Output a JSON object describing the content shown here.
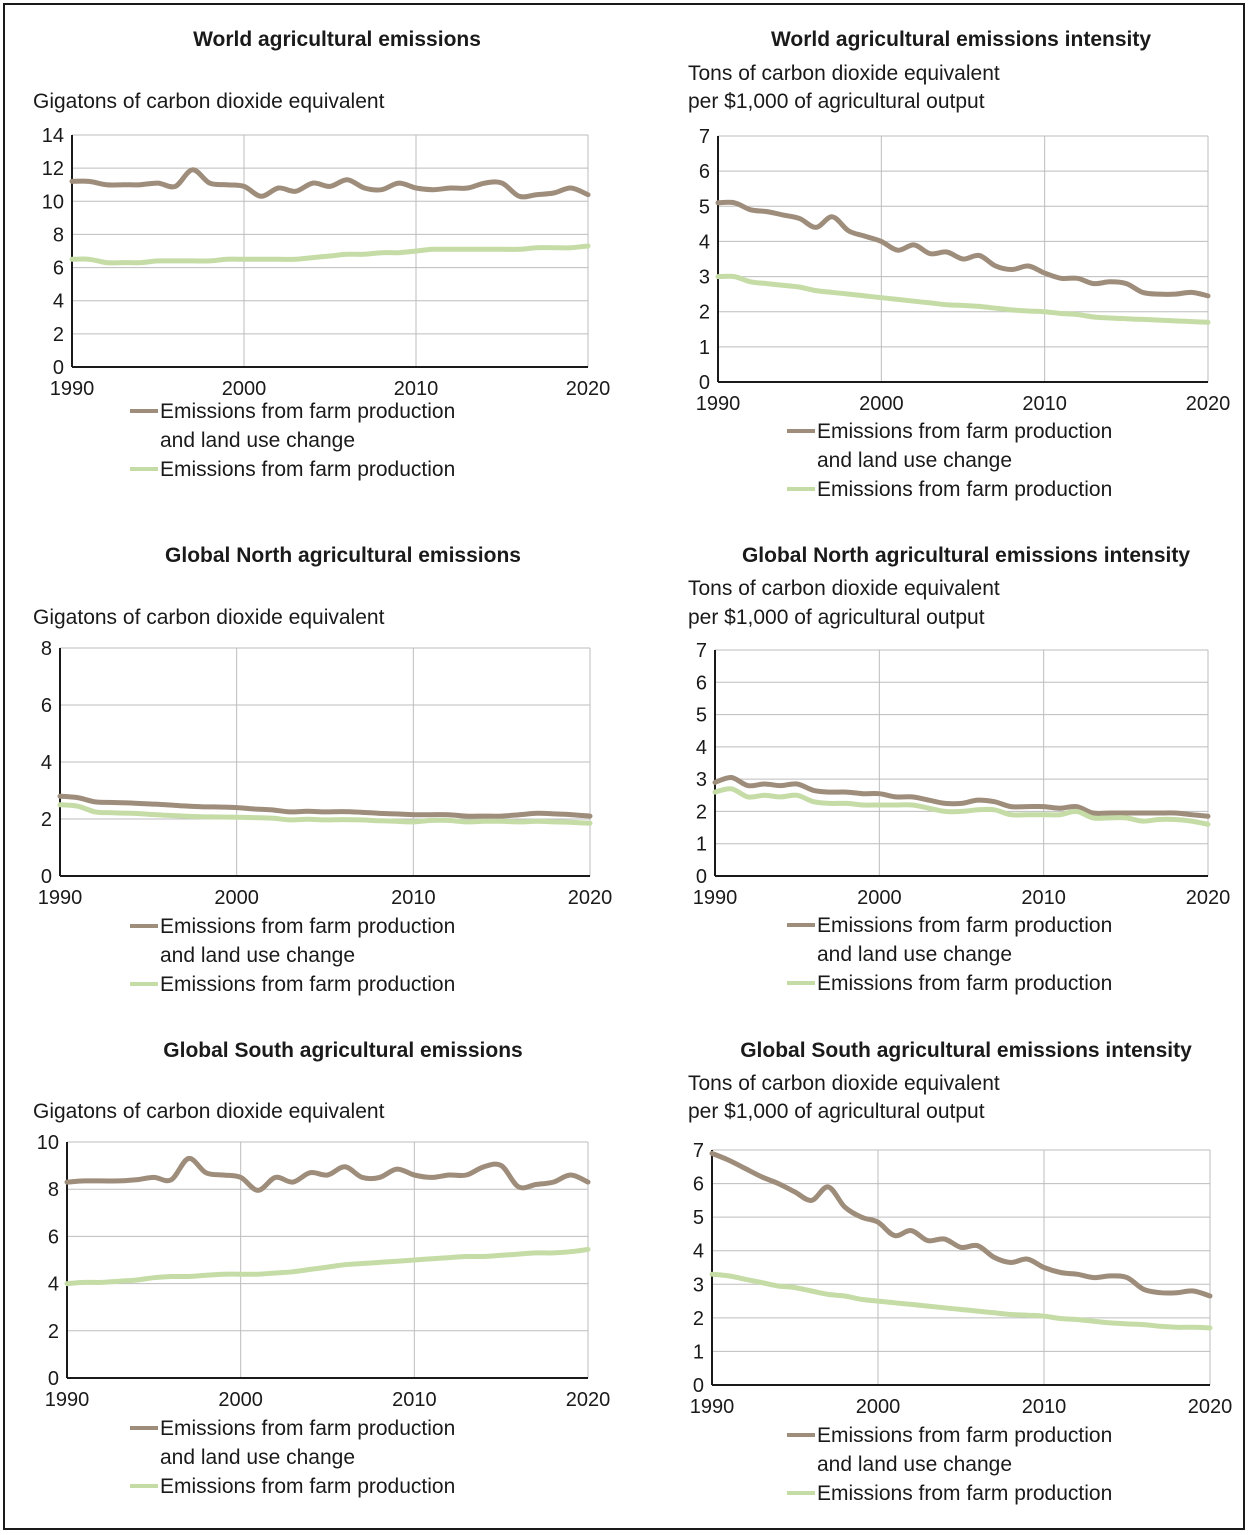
{
  "colors": {
    "land_use": "#9e8d7b",
    "farm": "#c5dca6",
    "grid": "#bdbdbd",
    "axis": "#1a1a1a"
  },
  "legend": {
    "land_use_line1": "Emissions from farm production",
    "land_use_line2": "and land use change",
    "farm": "Emissions from farm production"
  },
  "chart_data": [
    {
      "id": "world_emissions",
      "type": "line",
      "title": "World agricultural emissions",
      "unit_lines": [
        "",
        "Gigatons of carbon dioxide equivalent"
      ],
      "ylim": [
        0,
        14
      ],
      "yticks": [
        0,
        2,
        4,
        6,
        8,
        10,
        12,
        14
      ],
      "xlim": [
        1990,
        2020
      ],
      "xticks": [
        1990,
        2000,
        2010,
        2020
      ],
      "legend_position": "bottom",
      "grid": true,
      "series": [
        {
          "key": "land_use",
          "name": "Emissions from farm production and land use change",
          "x": [
            1990,
            1991,
            1992,
            1993,
            1994,
            1995,
            1996,
            1997,
            1998,
            1999,
            2000,
            2001,
            2002,
            2003,
            2004,
            2005,
            2006,
            2007,
            2008,
            2009,
            2010,
            2011,
            2012,
            2013,
            2014,
            2015,
            2016,
            2017,
            2018,
            2019,
            2020
          ],
          "values": [
            11.2,
            11.2,
            11.0,
            11.0,
            11.0,
            11.1,
            10.9,
            11.9,
            11.1,
            11.0,
            10.9,
            10.3,
            10.8,
            10.6,
            11.1,
            10.9,
            11.3,
            10.8,
            10.7,
            11.1,
            10.8,
            10.7,
            10.8,
            10.8,
            11.1,
            11.1,
            10.3,
            10.4,
            10.5,
            10.8,
            10.4
          ]
        },
        {
          "key": "farm",
          "name": "Emissions from farm production",
          "x": [
            1990,
            1991,
            1992,
            1993,
            1994,
            1995,
            1996,
            1997,
            1998,
            1999,
            2000,
            2001,
            2002,
            2003,
            2004,
            2005,
            2006,
            2007,
            2008,
            2009,
            2010,
            2011,
            2012,
            2013,
            2014,
            2015,
            2016,
            2017,
            2018,
            2019,
            2020
          ],
          "values": [
            6.5,
            6.5,
            6.3,
            6.3,
            6.3,
            6.4,
            6.4,
            6.4,
            6.4,
            6.5,
            6.5,
            6.5,
            6.5,
            6.5,
            6.6,
            6.7,
            6.8,
            6.8,
            6.9,
            6.9,
            7.0,
            7.1,
            7.1,
            7.1,
            7.1,
            7.1,
            7.1,
            7.2,
            7.2,
            7.2,
            7.3
          ]
        }
      ]
    },
    {
      "id": "world_intensity",
      "type": "line",
      "title": "World agricultural emissions intensity",
      "unit_lines": [
        "Tons of carbon dioxide equivalent",
        "per $1,000 of agricultural output"
      ],
      "ylim": [
        0,
        7
      ],
      "yticks": [
        0,
        1,
        2,
        3,
        4,
        5,
        6,
        7
      ],
      "xlim": [
        1990,
        2020
      ],
      "xticks": [
        1990,
        2000,
        2010,
        2020
      ],
      "legend_position": "bottom",
      "grid": true,
      "series": [
        {
          "key": "land_use",
          "name": "Emissions from farm production and land use change",
          "x": [
            1990,
            1991,
            1992,
            1993,
            1994,
            1995,
            1996,
            1997,
            1998,
            1999,
            2000,
            2001,
            2002,
            2003,
            2004,
            2005,
            2006,
            2007,
            2008,
            2009,
            2010,
            2011,
            2012,
            2013,
            2014,
            2015,
            2016,
            2017,
            2018,
            2019,
            2020
          ],
          "values": [
            5.1,
            5.1,
            4.9,
            4.85,
            4.75,
            4.65,
            4.4,
            4.7,
            4.3,
            4.15,
            4.0,
            3.75,
            3.9,
            3.65,
            3.7,
            3.5,
            3.6,
            3.3,
            3.2,
            3.3,
            3.1,
            2.95,
            2.95,
            2.8,
            2.85,
            2.8,
            2.55,
            2.5,
            2.5,
            2.55,
            2.45
          ]
        },
        {
          "key": "farm",
          "name": "Emissions from farm production",
          "x": [
            1990,
            1991,
            1992,
            1993,
            1994,
            1995,
            1996,
            1997,
            1998,
            1999,
            2000,
            2001,
            2002,
            2003,
            2004,
            2005,
            2006,
            2007,
            2008,
            2009,
            2010,
            2011,
            2012,
            2013,
            2014,
            2015,
            2016,
            2017,
            2018,
            2019,
            2020
          ],
          "values": [
            3.0,
            3.0,
            2.85,
            2.8,
            2.75,
            2.7,
            2.6,
            2.55,
            2.5,
            2.45,
            2.4,
            2.35,
            2.3,
            2.25,
            2.2,
            2.18,
            2.15,
            2.1,
            2.05,
            2.02,
            2.0,
            1.95,
            1.92,
            1.85,
            1.82,
            1.8,
            1.78,
            1.76,
            1.74,
            1.72,
            1.7
          ]
        }
      ]
    },
    {
      "id": "north_emissions",
      "type": "line",
      "title": "Global North agricultural emissions",
      "unit_lines": [
        "",
        "Gigatons of carbon dioxide equivalent"
      ],
      "ylim": [
        0,
        8
      ],
      "yticks": [
        0,
        2,
        4,
        6,
        8
      ],
      "xlim": [
        1990,
        2020
      ],
      "xticks": [
        1990,
        2000,
        2010,
        2020
      ],
      "legend_position": "bottom",
      "grid": true,
      "series": [
        {
          "key": "land_use",
          "name": "Emissions from farm production and land use change",
          "x": [
            1990,
            1991,
            1992,
            1993,
            1994,
            1995,
            1996,
            1997,
            1998,
            1999,
            2000,
            2001,
            2002,
            2003,
            2004,
            2005,
            2006,
            2007,
            2008,
            2009,
            2010,
            2011,
            2012,
            2013,
            2014,
            2015,
            2016,
            2017,
            2018,
            2019,
            2020
          ],
          "values": [
            2.8,
            2.75,
            2.6,
            2.58,
            2.56,
            2.53,
            2.5,
            2.46,
            2.43,
            2.42,
            2.4,
            2.35,
            2.32,
            2.25,
            2.27,
            2.25,
            2.26,
            2.24,
            2.2,
            2.18,
            2.15,
            2.15,
            2.15,
            2.1,
            2.1,
            2.1,
            2.15,
            2.2,
            2.18,
            2.15,
            2.1
          ]
        },
        {
          "key": "farm",
          "name": "Emissions from farm production",
          "x": [
            1990,
            1991,
            1992,
            1993,
            1994,
            1995,
            1996,
            1997,
            1998,
            1999,
            2000,
            2001,
            2002,
            2003,
            2004,
            2005,
            2006,
            2007,
            2008,
            2009,
            2010,
            2011,
            2012,
            2013,
            2014,
            2015,
            2016,
            2017,
            2018,
            2019,
            2020
          ],
          "values": [
            2.5,
            2.45,
            2.25,
            2.22,
            2.2,
            2.17,
            2.13,
            2.1,
            2.08,
            2.07,
            2.06,
            2.05,
            2.03,
            1.97,
            1.99,
            1.97,
            1.98,
            1.97,
            1.94,
            1.92,
            1.9,
            1.95,
            1.95,
            1.9,
            1.92,
            1.92,
            1.9,
            1.92,
            1.9,
            1.88,
            1.85
          ]
        }
      ]
    },
    {
      "id": "north_intensity",
      "type": "line",
      "title": "Global North agricultural emissions intensity",
      "unit_lines": [
        "Tons of carbon dioxide equivalent",
        "per $1,000 of agricultural output"
      ],
      "ylim": [
        0,
        7
      ],
      "yticks": [
        0,
        1,
        2,
        3,
        4,
        5,
        6,
        7
      ],
      "xlim": [
        1990,
        2020
      ],
      "xticks": [
        1990,
        2000,
        2010,
        2020
      ],
      "legend_position": "bottom",
      "grid": true,
      "series": [
        {
          "key": "land_use",
          "name": "Emissions from farm production and land use change",
          "x": [
            1990,
            1991,
            1992,
            1993,
            1994,
            1995,
            1996,
            1997,
            1998,
            1999,
            2000,
            2001,
            2002,
            2003,
            2004,
            2005,
            2006,
            2007,
            2008,
            2009,
            2010,
            2011,
            2012,
            2013,
            2014,
            2015,
            2016,
            2017,
            2018,
            2019,
            2020
          ],
          "values": [
            2.9,
            3.05,
            2.8,
            2.85,
            2.8,
            2.85,
            2.65,
            2.6,
            2.6,
            2.55,
            2.55,
            2.45,
            2.45,
            2.35,
            2.25,
            2.25,
            2.35,
            2.3,
            2.15,
            2.15,
            2.15,
            2.1,
            2.15,
            1.95,
            1.95,
            1.95,
            1.95,
            1.95,
            1.95,
            1.9,
            1.85
          ]
        },
        {
          "key": "farm",
          "name": "Emissions from farm production",
          "x": [
            1990,
            1991,
            1992,
            1993,
            1994,
            1995,
            1996,
            1997,
            1998,
            1999,
            2000,
            2001,
            2002,
            2003,
            2004,
            2005,
            2006,
            2007,
            2008,
            2009,
            2010,
            2011,
            2012,
            2013,
            2014,
            2015,
            2016,
            2017,
            2018,
            2019,
            2020
          ],
          "values": [
            2.6,
            2.7,
            2.45,
            2.5,
            2.45,
            2.5,
            2.3,
            2.25,
            2.25,
            2.2,
            2.2,
            2.2,
            2.2,
            2.1,
            2.0,
            2.0,
            2.05,
            2.05,
            1.9,
            1.9,
            1.9,
            1.9,
            2.0,
            1.8,
            1.8,
            1.8,
            1.7,
            1.75,
            1.75,
            1.7,
            1.6
          ]
        }
      ]
    },
    {
      "id": "south_emissions",
      "type": "line",
      "title": "Global South agricultural emissions",
      "unit_lines": [
        "",
        "Gigatons of carbon dioxide equivalent"
      ],
      "ylim": [
        0,
        10
      ],
      "yticks": [
        0,
        2,
        4,
        6,
        8,
        10
      ],
      "xlim": [
        1990,
        2020
      ],
      "xticks": [
        1990,
        2000,
        2010,
        2020
      ],
      "legend_position": "bottom",
      "grid": true,
      "series": [
        {
          "key": "land_use",
          "name": "Emissions from farm production and land use change",
          "x": [
            1990,
            1991,
            1992,
            1993,
            1994,
            1995,
            1996,
            1997,
            1998,
            1999,
            2000,
            2001,
            2002,
            2003,
            2004,
            2005,
            2006,
            2007,
            2008,
            2009,
            2010,
            2011,
            2012,
            2013,
            2014,
            2015,
            2016,
            2017,
            2018,
            2019,
            2020
          ],
          "values": [
            8.3,
            8.35,
            8.35,
            8.35,
            8.4,
            8.5,
            8.4,
            9.3,
            8.7,
            8.6,
            8.5,
            7.95,
            8.5,
            8.3,
            8.7,
            8.6,
            8.95,
            8.5,
            8.5,
            8.85,
            8.6,
            8.5,
            8.6,
            8.6,
            8.95,
            9.0,
            8.1,
            8.2,
            8.3,
            8.6,
            8.3
          ]
        },
        {
          "key": "farm",
          "name": "Emissions from farm production",
          "x": [
            1990,
            1991,
            1992,
            1993,
            1994,
            1995,
            1996,
            1997,
            1998,
            1999,
            2000,
            2001,
            2002,
            2003,
            2004,
            2005,
            2006,
            2007,
            2008,
            2009,
            2010,
            2011,
            2012,
            2013,
            2014,
            2015,
            2016,
            2017,
            2018,
            2019,
            2020
          ],
          "values": [
            4.0,
            4.05,
            4.05,
            4.1,
            4.15,
            4.25,
            4.3,
            4.3,
            4.35,
            4.4,
            4.4,
            4.4,
            4.45,
            4.5,
            4.6,
            4.7,
            4.8,
            4.85,
            4.9,
            4.95,
            5.0,
            5.05,
            5.1,
            5.15,
            5.15,
            5.2,
            5.25,
            5.3,
            5.3,
            5.35,
            5.45
          ]
        }
      ]
    },
    {
      "id": "south_intensity",
      "type": "line",
      "title": "Global South agricultural emissions intensity",
      "unit_lines": [
        "Tons of carbon dioxide equivalent",
        "per $1,000 of agricultural output"
      ],
      "ylim": [
        0,
        7
      ],
      "yticks": [
        0,
        1,
        2,
        3,
        4,
        5,
        6,
        7
      ],
      "xlim": [
        1990,
        2020
      ],
      "xticks": [
        1990,
        2000,
        2010,
        2020
      ],
      "legend_position": "bottom",
      "grid": true,
      "series": [
        {
          "key": "land_use",
          "name": "Emissions from farm production and land use change",
          "x": [
            1990,
            1991,
            1992,
            1993,
            1994,
            1995,
            1996,
            1997,
            1998,
            1999,
            2000,
            2001,
            2002,
            2003,
            2004,
            2005,
            2006,
            2007,
            2008,
            2009,
            2010,
            2011,
            2012,
            2013,
            2014,
            2015,
            2016,
            2017,
            2018,
            2019,
            2020
          ],
          "values": [
            6.9,
            6.7,
            6.45,
            6.2,
            6.0,
            5.75,
            5.5,
            5.9,
            5.3,
            5.0,
            4.85,
            4.45,
            4.6,
            4.3,
            4.35,
            4.1,
            4.15,
            3.8,
            3.65,
            3.75,
            3.5,
            3.35,
            3.3,
            3.2,
            3.25,
            3.2,
            2.85,
            2.75,
            2.75,
            2.8,
            2.65
          ]
        },
        {
          "key": "farm",
          "name": "Emissions from farm production",
          "x": [
            1990,
            1991,
            1992,
            1993,
            1994,
            1995,
            1996,
            1997,
            1998,
            1999,
            2000,
            2001,
            2002,
            2003,
            2004,
            2005,
            2006,
            2007,
            2008,
            2009,
            2010,
            2011,
            2012,
            2013,
            2014,
            2015,
            2016,
            2017,
            2018,
            2019,
            2020
          ],
          "values": [
            3.3,
            3.25,
            3.15,
            3.05,
            2.95,
            2.9,
            2.8,
            2.7,
            2.65,
            2.55,
            2.5,
            2.45,
            2.4,
            2.35,
            2.3,
            2.25,
            2.2,
            2.15,
            2.1,
            2.08,
            2.05,
            1.98,
            1.95,
            1.9,
            1.85,
            1.82,
            1.8,
            1.75,
            1.72,
            1.72,
            1.7
          ]
        }
      ]
    }
  ]
}
